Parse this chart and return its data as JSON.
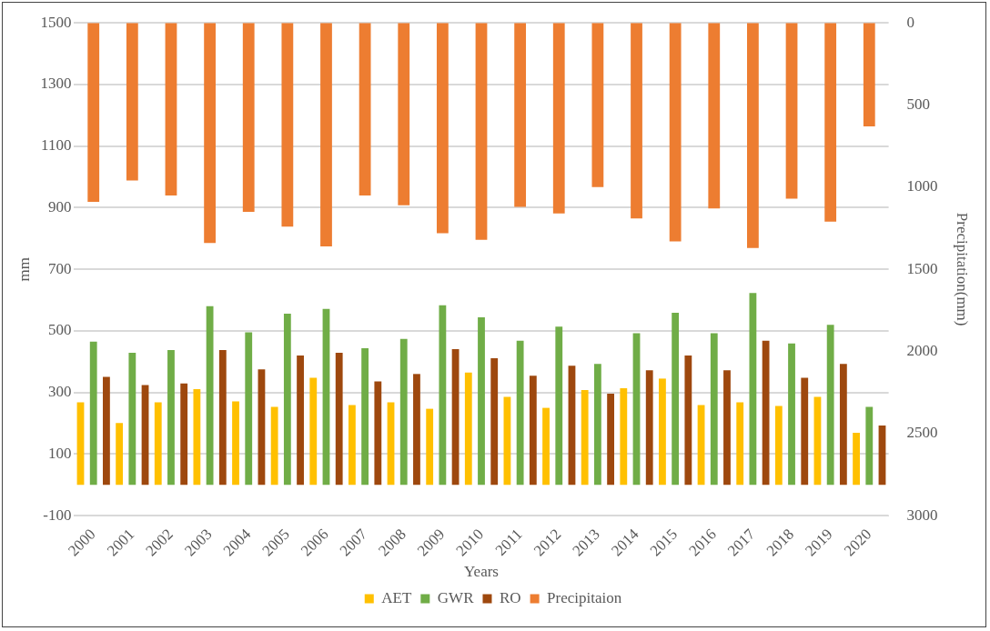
{
  "chart_data": {
    "type": "bar",
    "xlabel": "Years",
    "ylabel": "mm",
    "y2label": "Precipitation(mm)",
    "categories": [
      "2000",
      "2001",
      "2002",
      "2003",
      "2004",
      "2005",
      "2006",
      "2007",
      "2008",
      "2009",
      "2010",
      "2011",
      "2012",
      "2013",
      "2014",
      "2015",
      "2016",
      "2017",
      "2018",
      "2019",
      "2020"
    ],
    "series": [
      {
        "name": "AET",
        "color": "#ffc000",
        "values": [
          268,
          201,
          268,
          311,
          271,
          253,
          348,
          259,
          268,
          247,
          365,
          286,
          250,
          308,
          314,
          345,
          259,
          268,
          256,
          286,
          169
        ]
      },
      {
        "name": "GWR",
        "color": "#70ad47",
        "values": [
          465,
          429,
          438,
          580,
          495,
          556,
          571,
          444,
          474,
          583,
          544,
          468,
          514,
          393,
          492,
          559,
          492,
          623,
          459,
          520,
          253
        ]
      },
      {
        "name": "RO",
        "color": "#9e480e",
        "values": [
          351,
          324,
          329,
          438,
          375,
          420,
          429,
          336,
          360,
          441,
          411,
          354,
          387,
          296,
          372,
          420,
          372,
          468,
          348,
          393,
          193
        ]
      },
      {
        "name": "Precipitaion",
        "color": "#ed7d31",
        "axis": "y2",
        "values": [
          1090,
          960,
          1050,
          1340,
          1150,
          1240,
          1360,
          1050,
          1110,
          1280,
          1320,
          1120,
          1160,
          1000,
          1190,
          1330,
          1130,
          1370,
          1070,
          1210,
          630
        ]
      }
    ],
    "ylim": [
      -100,
      1500
    ],
    "yticks": [
      -100,
      100,
      300,
      500,
      700,
      900,
      1100,
      1300,
      1500
    ],
    "y2lim": [
      3000,
      0
    ],
    "y2ticks": [
      0,
      500,
      1000,
      1500,
      2000,
      2500,
      3000
    ],
    "grid": "y",
    "legend": "bottom"
  }
}
